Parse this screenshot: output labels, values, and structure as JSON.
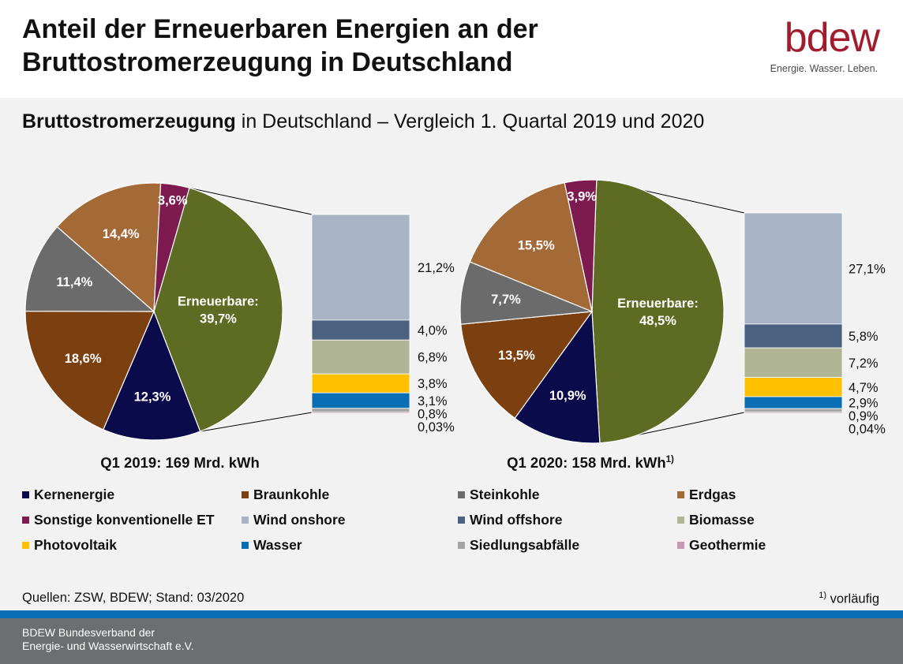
{
  "header": {
    "title_line1": "Anteil der Erneuerbaren Energien an der",
    "title_line2": "Bruttostromerzeugung in Deutschland",
    "logo_word": "bdew",
    "logo_slogan": "Energie. Wasser. Leben."
  },
  "subtitle": {
    "bold": "Bruttostromerzeugung",
    "rest": " in Deutschland – Vergleich 1. Quartal 2019 und 2020"
  },
  "colors": {
    "Kernenergie": "#0b0a4a",
    "Braunkohle": "#7b3f10",
    "Steinkohle": "#6b6b6b",
    "Erdgas": "#a36a38",
    "Sonstige konventionelle ET": "#7d1a4f",
    "Erneuerbare": "#5e6b22",
    "Wind onshore": "#a8b4c5",
    "Wind offshore": "#4c6180",
    "Biomasse": "#b0b596",
    "Photovoltaik": "#ffc000",
    "Wasser": "#0a6eb4",
    "Siedlungsabfälle": "#a6a6a6",
    "Geothermie": "#c699b0"
  },
  "chart_data": [
    {
      "type": "pie",
      "caption": "Q1 2019: 169 Mrd. kWh",
      "caption_sup": "",
      "slices": [
        {
          "name": "Erneuerbare",
          "value": 39.7,
          "label": "39,7%",
          "label_name": "Erneuerbare:"
        },
        {
          "name": "Kernenergie",
          "value": 12.3,
          "label": "12,3%"
        },
        {
          "name": "Braunkohle",
          "value": 18.6,
          "label": "18,6%"
        },
        {
          "name": "Steinkohle",
          "value": 11.4,
          "label": "11,4%"
        },
        {
          "name": "Erdgas",
          "value": 14.4,
          "label": "14,4%"
        },
        {
          "name": "Sonstige konventionelle ET",
          "value": 3.6,
          "label": "3,6%"
        }
      ],
      "renewables_breakdown": [
        {
          "name": "Wind onshore",
          "value": 21.2,
          "label": "21,2%"
        },
        {
          "name": "Wind offshore",
          "value": 4.0,
          "label": "4,0%"
        },
        {
          "name": "Biomasse",
          "value": 6.8,
          "label": "6,8%"
        },
        {
          "name": "Photovoltaik",
          "value": 3.8,
          "label": "3,8%"
        },
        {
          "name": "Wasser",
          "value": 3.1,
          "label": "3,1%"
        },
        {
          "name": "Siedlungsabfälle",
          "value": 0.8,
          "label": "0,8%"
        },
        {
          "name": "Geothermie",
          "value": 0.03,
          "label": "0,03%"
        }
      ]
    },
    {
      "type": "pie",
      "caption": "Q1 2020: 158 Mrd. kWh",
      "caption_sup": "1)",
      "slices": [
        {
          "name": "Erneuerbare",
          "value": 48.5,
          "label": "48,5%",
          "label_name": "Erneuerbare:"
        },
        {
          "name": "Kernenergie",
          "value": 10.9,
          "label": "10,9%"
        },
        {
          "name": "Braunkohle",
          "value": 13.5,
          "label": "13,5%"
        },
        {
          "name": "Steinkohle",
          "value": 7.7,
          "label": "7,7%"
        },
        {
          "name": "Erdgas",
          "value": 15.5,
          "label": "15,5%"
        },
        {
          "name": "Sonstige konventionelle ET",
          "value": 3.9,
          "label": "3,9%"
        }
      ],
      "renewables_breakdown": [
        {
          "name": "Wind onshore",
          "value": 27.1,
          "label": "27,1%"
        },
        {
          "name": "Wind offshore",
          "value": 5.8,
          "label": "5,8%"
        },
        {
          "name": "Biomasse",
          "value": 7.2,
          "label": "7,2%"
        },
        {
          "name": "Photovoltaik",
          "value": 4.7,
          "label": "4,7%"
        },
        {
          "name": "Wasser",
          "value": 2.9,
          "label": "2,9%"
        },
        {
          "name": "Siedlungsabfälle",
          "value": 0.9,
          "label": "0,9%"
        },
        {
          "name": "Geothermie",
          "value": 0.04,
          "label": "0,04%"
        }
      ]
    }
  ],
  "legend": [
    "Kernenergie",
    "Braunkohle",
    "Steinkohle",
    "Erdgas",
    "Sonstige konventionelle ET",
    "Wind onshore",
    "Wind offshore",
    "Biomasse",
    "Photovoltaik",
    "Wasser",
    "Siedlungsabfälle",
    "Geothermie"
  ],
  "footer": {
    "sources": "Quellen: ZSW, BDEW; Stand: 03/2020",
    "note_sup": "1)",
    "note": " vorläufig",
    "org_line1": "BDEW Bundesverband der",
    "org_line2": "Energie- und Wasserwirtschaft e.V."
  }
}
